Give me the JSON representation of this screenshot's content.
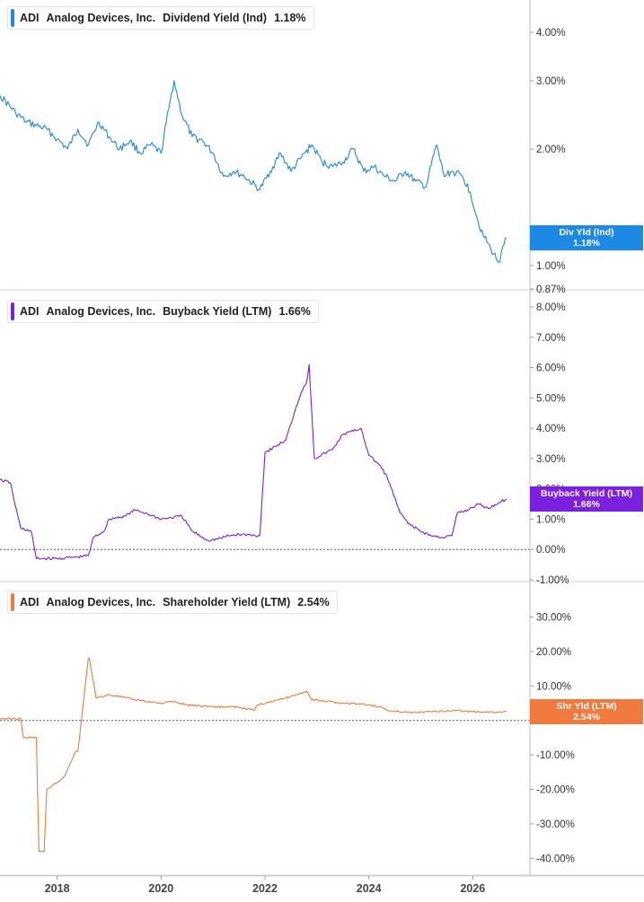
{
  "colors": {
    "dividend": "#1e88e5",
    "buyback": "#7b1fe0",
    "shareholder": "#f07a3e",
    "grid": "#cccccc",
    "axis_text": "#333333"
  },
  "x_axis": {
    "ticks": [
      "2018",
      "2020",
      "2022",
      "2024",
      "2026"
    ]
  },
  "chart_data": [
    {
      "type": "line",
      "legend": {
        "ticker": "ADI",
        "company": "Analog Devices, Inc.",
        "metric": "Dividend Yield (Ind)",
        "value": "1.18%"
      },
      "axis_tag": {
        "label": "Div Yld (Ind)",
        "value": "1.18%"
      },
      "y_scale": "log",
      "ylim": [
        0.87,
        4.5
      ],
      "y_ticks": [
        {
          "value": 4.0,
          "label": "4.00%"
        },
        {
          "value": 3.0,
          "label": "3.00%"
        },
        {
          "value": 2.0,
          "label": "2.00%"
        },
        {
          "value": 1.0,
          "label": "1.00%"
        },
        {
          "value": 0.87,
          "label": "0.87%"
        }
      ],
      "x": [
        2016.9,
        2017.2,
        2017.4,
        2017.6,
        2017.8,
        2018.0,
        2018.2,
        2018.4,
        2018.6,
        2018.8,
        2019.0,
        2019.2,
        2019.4,
        2019.6,
        2019.8,
        2020.0,
        2020.15,
        2020.25,
        2020.4,
        2020.6,
        2020.8,
        2021.0,
        2021.2,
        2021.4,
        2021.6,
        2021.9,
        2022.1,
        2022.3,
        2022.5,
        2022.7,
        2022.9,
        2023.1,
        2023.3,
        2023.5,
        2023.7,
        2023.9,
        2024.1,
        2024.3,
        2024.5,
        2024.7,
        2024.9,
        2025.1,
        2025.3,
        2025.45,
        2025.6,
        2025.8,
        2025.95,
        2026.1,
        2026.2,
        2026.35,
        2026.5,
        2026.65
      ],
      "values": [
        2.75,
        2.48,
        2.35,
        2.3,
        2.25,
        2.12,
        2.0,
        2.25,
        2.05,
        2.35,
        2.15,
        2.0,
        2.1,
        1.95,
        2.05,
        1.95,
        2.55,
        3.0,
        2.45,
        2.15,
        2.1,
        1.95,
        1.7,
        1.75,
        1.7,
        1.57,
        1.75,
        1.95,
        1.75,
        1.9,
        2.05,
        1.85,
        1.8,
        1.85,
        2.0,
        1.75,
        1.8,
        1.7,
        1.65,
        1.75,
        1.65,
        1.6,
        2.05,
        1.7,
        1.75,
        1.7,
        1.55,
        1.3,
        1.2,
        1.1,
        1.02,
        1.18
      ]
    },
    {
      "type": "line",
      "legend": {
        "ticker": "ADI",
        "company": "Analog Devices, Inc.",
        "metric": "Buyback Yield (LTM)",
        "value": "1.66%"
      },
      "axis_tag": {
        "label": "Buyback Yield (LTM)",
        "value": "1.66%"
      },
      "ylim": [
        -1.0,
        8.0
      ],
      "y_ticks": [
        {
          "value": 8,
          "label": "8.00%"
        },
        {
          "value": 7,
          "label": "7.00%"
        },
        {
          "value": 6,
          "label": "6.00%"
        },
        {
          "value": 5,
          "label": "5.00%"
        },
        {
          "value": 4,
          "label": "4.00%"
        },
        {
          "value": 3,
          "label": "3.00%"
        },
        {
          "value": 2,
          "label": "2.00%"
        },
        {
          "value": 1,
          "label": "1.00%"
        },
        {
          "value": 0,
          "label": "0.00%"
        },
        {
          "value": -1,
          "label": "-1.00%"
        }
      ],
      "x": [
        2016.9,
        2017.1,
        2017.2,
        2017.3,
        2017.5,
        2017.6,
        2018.0,
        2018.4,
        2018.6,
        2018.7,
        2018.9,
        2019.0,
        2019.3,
        2019.5,
        2019.7,
        2020.0,
        2020.4,
        2020.6,
        2020.9,
        2021.1,
        2021.3,
        2021.5,
        2021.9,
        2022.0,
        2022.2,
        2022.4,
        2022.6,
        2022.7,
        2022.8,
        2022.85,
        2022.95,
        2023.3,
        2023.5,
        2023.7,
        2023.85,
        2024.0,
        2024.2,
        2024.35,
        2024.6,
        2024.8,
        2025.0,
        2025.2,
        2025.4,
        2025.6,
        2025.7,
        2025.9,
        2026.1,
        2026.3,
        2026.5,
        2026.65
      ],
      "values": [
        2.3,
        2.2,
        1.4,
        0.7,
        0.6,
        -0.3,
        -0.3,
        -0.25,
        -0.2,
        0.4,
        0.6,
        1.0,
        1.1,
        1.3,
        1.2,
        1.0,
        1.1,
        0.6,
        0.3,
        0.35,
        0.45,
        0.5,
        0.45,
        3.2,
        3.4,
        3.6,
        4.7,
        5.2,
        5.5,
        6.1,
        3.0,
        3.3,
        3.8,
        3.9,
        4.0,
        3.1,
        2.8,
        2.4,
        1.2,
        0.8,
        0.6,
        0.45,
        0.4,
        0.45,
        1.2,
        1.3,
        1.5,
        1.35,
        1.55,
        1.66
      ]
    },
    {
      "type": "line",
      "legend": {
        "ticker": "ADI",
        "company": "Analog Devices, Inc.",
        "metric": "Shareholder Yield (LTM)",
        "value": "2.54%"
      },
      "axis_tag": {
        "label": "Shr Yld (LTM)",
        "value": "2.54%"
      },
      "ylim": [
        -42,
        33
      ],
      "y_ticks": [
        {
          "value": 30,
          "label": "30.00%"
        },
        {
          "value": 20,
          "label": "20.00%"
        },
        {
          "value": 10,
          "label": "10.00%"
        },
        {
          "value": -10,
          "label": "-10.00%"
        },
        {
          "value": -20,
          "label": "-20.00%"
        },
        {
          "value": -30,
          "label": "-30.00%"
        },
        {
          "value": -40,
          "label": "-40.00%"
        }
      ],
      "x": [
        2016.9,
        2017.3,
        2017.35,
        2017.6,
        2017.65,
        2017.75,
        2017.8,
        2018.0,
        2018.15,
        2018.35,
        2018.4,
        2018.6,
        2018.62,
        2018.75,
        2019.0,
        2019.5,
        2020.0,
        2020.2,
        2020.5,
        2021.0,
        2021.5,
        2021.8,
        2021.85,
        2022.1,
        2022.4,
        2022.6,
        2022.8,
        2022.9,
        2023.2,
        2023.5,
        2023.8,
        2024.0,
        2024.2,
        2024.4,
        2024.8,
        2025.2,
        2025.5,
        2025.7,
        2026.0,
        2026.3,
        2026.65
      ],
      "values": [
        0.5,
        0.5,
        -5,
        -5,
        -38,
        -38,
        -20,
        -18,
        -16,
        -9,
        -9,
        18,
        18,
        6.5,
        7.5,
        6,
        5,
        5.5,
        4.5,
        4,
        3.8,
        3,
        4.5,
        5.5,
        6.5,
        7.5,
        8.5,
        6,
        5.5,
        5,
        4.8,
        4.5,
        4,
        2.8,
        2.2,
        2.5,
        2.8,
        2.9,
        2.6,
        2.4,
        2.54
      ]
    }
  ]
}
